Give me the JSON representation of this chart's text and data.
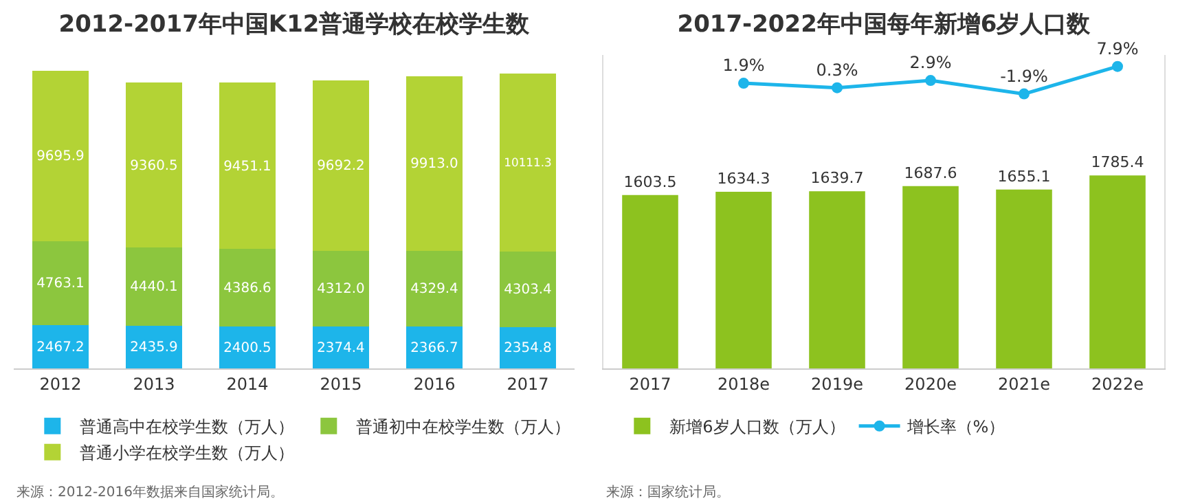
{
  "chart_data": [
    {
      "type": "bar",
      "title": "2012-2017年中国K12普通学校在校学生数",
      "categories": [
        "2012",
        "2013",
        "2014",
        "2015",
        "2016",
        "2017"
      ],
      "stacked": true,
      "legend": "bottom",
      "grid": false,
      "series": [
        {
          "name": "普通高中在校学生数（万人）",
          "color": "#1db5ea",
          "values": [
            2467.2,
            2435.9,
            2400.5,
            2374.4,
            2366.7,
            2354.8
          ],
          "value_labels": [
            "2467.2",
            "2435.9",
            "2400.5",
            "2374.4",
            "2366.7",
            "2354.8"
          ]
        },
        {
          "name": "普通初中在校学生数（万人）",
          "color": "#8cc63e",
          "values": [
            4763.1,
            4440.1,
            4386.6,
            4312.0,
            4329.4,
            4303.4
          ],
          "value_labels": [
            "4763.1",
            "4440.1",
            "4386.6",
            "4312.0",
            "4329.4",
            "4303.4"
          ]
        },
        {
          "name": "普通小学在校学生数（万人）",
          "color": "#b3d335",
          "values": [
            9695.9,
            9360.5,
            9451.1,
            9692.2,
            9913.0,
            10111.3
          ],
          "value_labels": [
            "9695.9",
            "9360.5",
            "9451.1",
            "9692.2",
            "9913.0",
            "10111.3"
          ]
        }
      ],
      "annotations": [
        "来源：2012-2016年数据来自国家统计局。"
      ]
    },
    {
      "type": "bar",
      "title": "2017-2022年中国每年新增6岁人口数",
      "categories": [
        "2017",
        "2018e",
        "2019e",
        "2020e",
        "2021e",
        "2022e"
      ],
      "legend": "bottom",
      "grid": false,
      "ylim": [
        0,
        2900
      ],
      "y2lim": [
        -100,
        12
      ],
      "series": [
        {
          "name": "新增6岁人口数（万人）",
          "color": "#8dc21f",
          "values": [
            1603.5,
            1634.3,
            1639.7,
            1687.6,
            1655.1,
            1785.4
          ],
          "value_labels": [
            "1603.5",
            "1634.3",
            "1639.7",
            "1687.6",
            "1655.1",
            "1785.4"
          ]
        },
        {
          "name": "增长率（%）",
          "type": "line",
          "axis": "y2",
          "marker": "circle",
          "line_style": "solid",
          "color": "#1db5ea",
          "values": [
            null,
            1.9,
            0.3,
            2.9,
            -1.9,
            7.9
          ],
          "value_labels": [
            null,
            "1.9%",
            "0.3%",
            "2.9%",
            "-1.9%",
            "7.9%"
          ]
        }
      ],
      "annotations": [
        "来源：国家统计局。"
      ]
    }
  ]
}
